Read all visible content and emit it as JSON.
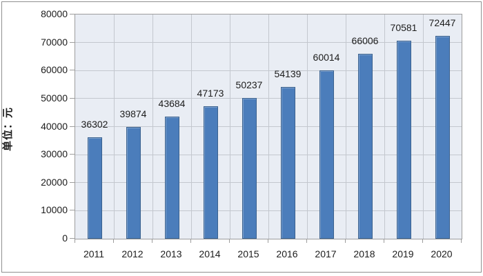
{
  "chart_data": {
    "type": "bar",
    "title": "",
    "categories": [
      "2011",
      "2012",
      "2013",
      "2014",
      "2015",
      "2016",
      "2017",
      "2018",
      "2019",
      "2020"
    ],
    "values": [
      36302,
      39874,
      43684,
      47173,
      50237,
      54139,
      60014,
      66006,
      70581,
      72447
    ],
    "value_labels": [
      "36302",
      "39874",
      "43684",
      "47173",
      "50237",
      "54139",
      "60014",
      "66006",
      "70581",
      "72447"
    ],
    "xlabel": "",
    "ylabel": "单位：元",
    "ylim": [
      0,
      80000
    ],
    "ytick_interval": 10000,
    "ytick_labels": [
      "80000",
      "70000",
      "60000",
      "50000",
      "40000",
      "30000",
      "20000",
      "10000",
      "0"
    ],
    "grid": true,
    "legend": "none",
    "colors": {
      "bar_fill": "#4b7dbb",
      "bar_border": "#3a618e",
      "plot_background": "#e9edf4",
      "gridline": "#c3c7ce",
      "axis_border": "#9c9c9c",
      "text": "#1c1c1c",
      "frame_border": "#8f8f8f"
    }
  }
}
